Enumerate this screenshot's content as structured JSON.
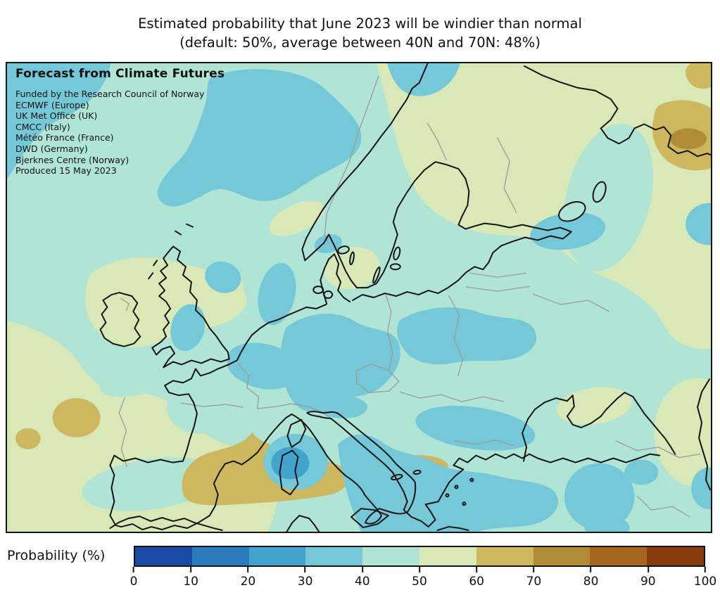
{
  "figure": {
    "title_line1": "Estimated probability that June 2023 will be windier than normal",
    "title_line2": "(default: 50%, average between 40N and 70N: 48%)"
  },
  "panel": {
    "heading": "Forecast from Climate Futures",
    "credits": [
      "Funded by the Research Council of Norway",
      "ECMWF (Europe)",
      "UK Met Office (UK)",
      "CMCC (Italy)",
      "Météo France (France)",
      "DWD (Germany)",
      "Bjerknes Centre (Norway)",
      "Produced 15 May 2023"
    ]
  },
  "colorbar": {
    "label": "Probability (%)",
    "ticks": [
      0,
      10,
      20,
      30,
      40,
      50,
      60,
      70,
      80,
      90,
      100
    ],
    "bands": [
      {
        "range": "0-10",
        "color": "#1b4aa5"
      },
      {
        "range": "10-20",
        "color": "#2b7cbd"
      },
      {
        "range": "20-30",
        "color": "#42a3cd"
      },
      {
        "range": "30-40",
        "color": "#74c8d7"
      },
      {
        "range": "40-50",
        "color": "#b0e4d5"
      },
      {
        "range": "50-60",
        "color": "#d8e8b6"
      },
      {
        "range": "60-70",
        "color": "#cdb75f"
      },
      {
        "range": "70-80",
        "color": "#b18c37"
      },
      {
        "range": "80-90",
        "color": "#a4671d"
      },
      {
        "range": "90-100",
        "color": "#883b0e"
      }
    ]
  },
  "map": {
    "projection_area": "Europe and surrounding seas",
    "background_band": "40-50",
    "coastline_color": "#141414",
    "country_border_color": "#9b9b9b",
    "regions": [
      {
        "name": "northeast-atlantic-corner",
        "band": "30-40"
      },
      {
        "name": "norwegian-sea-blob",
        "band": "30-40"
      },
      {
        "name": "barents-top-blob",
        "band": "30-40"
      },
      {
        "name": "north-sea-german-bight",
        "band": "30-40"
      },
      {
        "name": "england-patch",
        "band": "30-40"
      },
      {
        "name": "channel-benelux-patch",
        "band": "30-40"
      },
      {
        "name": "central-europe-blob",
        "band": "30-40"
      },
      {
        "name": "ukraine-belarus-blob",
        "band": "30-40"
      },
      {
        "name": "romania-serbia-blob",
        "band": "30-40"
      },
      {
        "name": "adriatic-aegean-blob",
        "band": "30-40"
      },
      {
        "name": "lake-ladoga-blob",
        "band": "30-40"
      },
      {
        "name": "anatolia-caucasus-blobs",
        "band": "30-40"
      },
      {
        "name": "tyrrhenian-corsica-patch",
        "band": "30-40",
        "core_band": "20-30"
      },
      {
        "name": "scotland-ireland-band",
        "band": "50-60"
      },
      {
        "name": "southwest-atlantic-iberia-band",
        "band": "50-60"
      },
      {
        "name": "south-sweden-patch",
        "band": "50-60"
      },
      {
        "name": "south-norway-patch",
        "band": "50-60"
      },
      {
        "name": "fennoscandia-nw-russia-region",
        "band": "50-60"
      },
      {
        "name": "crimea-patch",
        "band": "50-60"
      },
      {
        "name": "caspian-edge-region",
        "band": "50-60"
      },
      {
        "name": "central-spain-patch",
        "band": "60-70"
      },
      {
        "name": "west-atlantic-spots",
        "band": "60-70"
      },
      {
        "name": "white-sea-patch",
        "band": "60-70",
        "core_band": "70-80"
      },
      {
        "name": "map-background",
        "band": "40-50"
      }
    ]
  }
}
